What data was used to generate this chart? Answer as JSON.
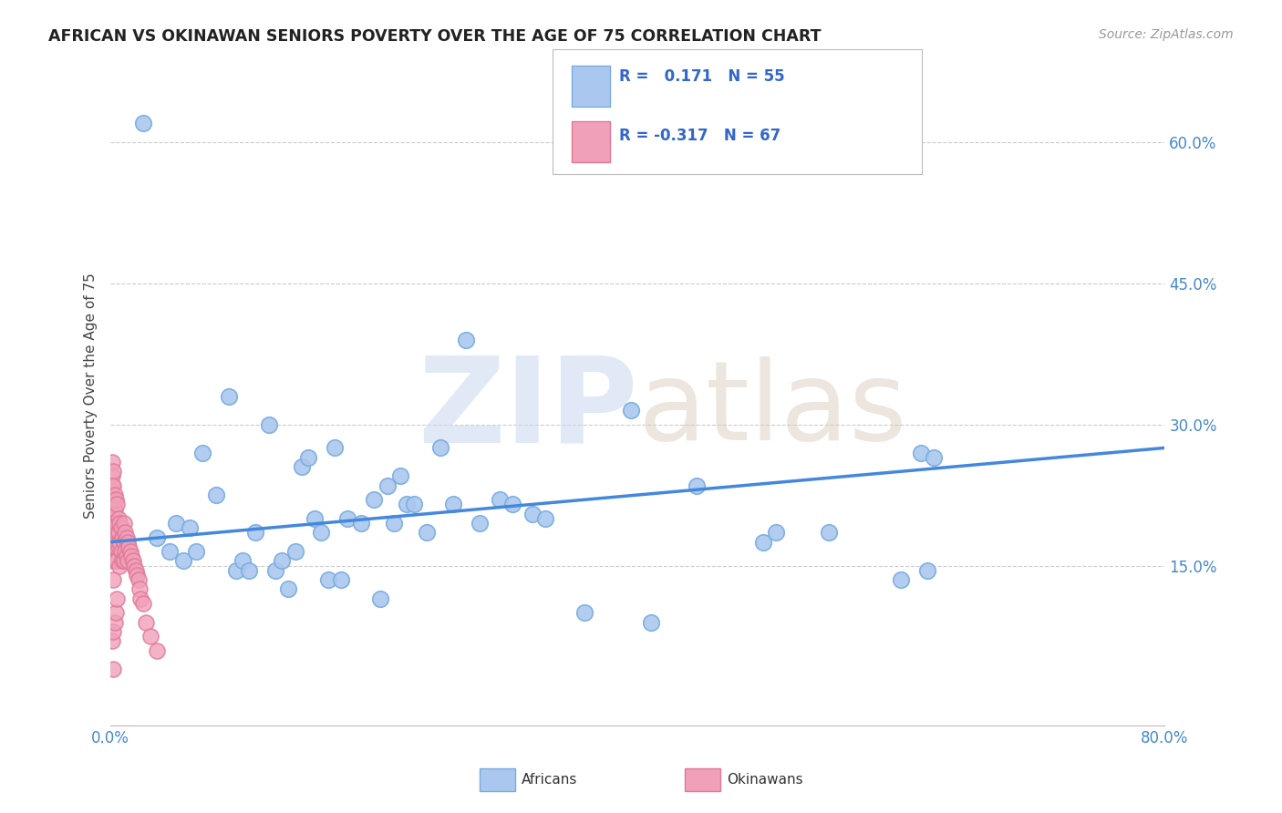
{
  "title": "AFRICAN VS OKINAWAN SENIORS POVERTY OVER THE AGE OF 75 CORRELATION CHART",
  "source": "Source: ZipAtlas.com",
  "ylabel": "Seniors Poverty Over the Age of 75",
  "xlim": [
    0.0,
    0.8
  ],
  "ylim": [
    -0.02,
    0.68
  ],
  "ytick_positions": [
    0.15,
    0.3,
    0.45,
    0.6
  ],
  "ytick_labels": [
    "15.0%",
    "30.0%",
    "45.0%",
    "60.0%"
  ],
  "grid_color": "#cccccc",
  "background_color": "#ffffff",
  "african_color": "#aac8ef",
  "okinawan_color": "#f0a0b8",
  "african_edge": "#7aabde",
  "okinawan_edge": "#e07898",
  "trend_african_color": "#4488dd",
  "watermark_color": "#dde8f8",
  "african_x": [
    0.025,
    0.035,
    0.045,
    0.05,
    0.055,
    0.06,
    0.065,
    0.07,
    0.08,
    0.09,
    0.095,
    0.1,
    0.105,
    0.11,
    0.12,
    0.125,
    0.13,
    0.135,
    0.14,
    0.145,
    0.15,
    0.155,
    0.16,
    0.165,
    0.17,
    0.175,
    0.18,
    0.19,
    0.2,
    0.205,
    0.21,
    0.215,
    0.22,
    0.225,
    0.23,
    0.24,
    0.25,
    0.26,
    0.27,
    0.28,
    0.295,
    0.305,
    0.32,
    0.33,
    0.36,
    0.395,
    0.41,
    0.445,
    0.495,
    0.505,
    0.545,
    0.6,
    0.615,
    0.62,
    0.625
  ],
  "african_y": [
    0.62,
    0.18,
    0.165,
    0.195,
    0.155,
    0.19,
    0.165,
    0.27,
    0.225,
    0.33,
    0.145,
    0.155,
    0.145,
    0.185,
    0.3,
    0.145,
    0.155,
    0.125,
    0.165,
    0.255,
    0.265,
    0.2,
    0.185,
    0.135,
    0.275,
    0.135,
    0.2,
    0.195,
    0.22,
    0.115,
    0.235,
    0.195,
    0.245,
    0.215,
    0.215,
    0.185,
    0.275,
    0.215,
    0.39,
    0.195,
    0.22,
    0.215,
    0.205,
    0.2,
    0.1,
    0.315,
    0.09,
    0.235,
    0.175,
    0.185,
    0.185,
    0.135,
    0.27,
    0.145,
    0.265
  ],
  "okinawan_x": [
    0.001,
    0.001,
    0.001,
    0.001,
    0.001,
    0.001,
    0.001,
    0.001,
    0.001,
    0.001,
    0.002,
    0.002,
    0.002,
    0.002,
    0.002,
    0.002,
    0.002,
    0.002,
    0.002,
    0.003,
    0.003,
    0.003,
    0.003,
    0.003,
    0.003,
    0.004,
    0.004,
    0.004,
    0.004,
    0.005,
    0.005,
    0.005,
    0.005,
    0.005,
    0.006,
    0.006,
    0.006,
    0.007,
    0.007,
    0.007,
    0.008,
    0.008,
    0.009,
    0.009,
    0.01,
    0.01,
    0.01,
    0.011,
    0.011,
    0.012,
    0.012,
    0.013,
    0.013,
    0.014,
    0.015,
    0.016,
    0.017,
    0.018,
    0.019,
    0.02,
    0.021,
    0.022,
    0.023,
    0.025,
    0.027,
    0.03,
    0.035
  ],
  "okinawan_y": [
    0.26,
    0.245,
    0.235,
    0.22,
    0.205,
    0.195,
    0.18,
    0.17,
    0.155,
    0.07,
    0.25,
    0.235,
    0.215,
    0.19,
    0.175,
    0.155,
    0.135,
    0.08,
    0.04,
    0.225,
    0.21,
    0.19,
    0.175,
    0.155,
    0.09,
    0.22,
    0.185,
    0.17,
    0.1,
    0.215,
    0.195,
    0.175,
    0.155,
    0.115,
    0.2,
    0.185,
    0.17,
    0.195,
    0.175,
    0.15,
    0.19,
    0.165,
    0.18,
    0.155,
    0.195,
    0.175,
    0.155,
    0.185,
    0.165,
    0.18,
    0.16,
    0.175,
    0.155,
    0.17,
    0.165,
    0.16,
    0.155,
    0.15,
    0.145,
    0.14,
    0.135,
    0.125,
    0.115,
    0.11,
    0.09,
    0.075,
    0.06
  ],
  "trend_line_x0": 0.0,
  "trend_line_x1": 0.8,
  "trend_line_y0": 0.175,
  "trend_line_y1": 0.275
}
